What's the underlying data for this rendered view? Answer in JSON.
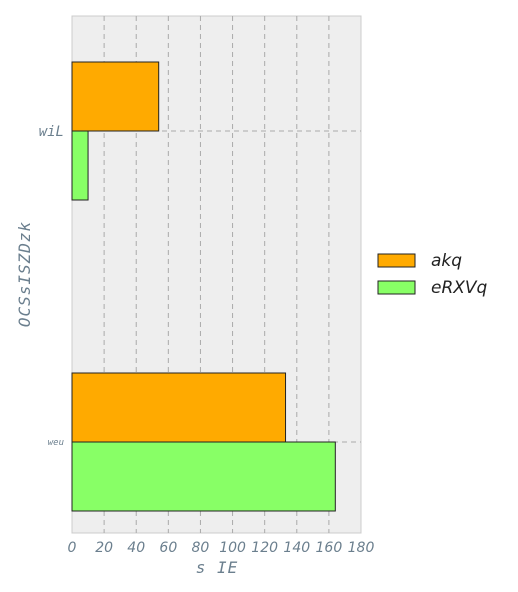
{
  "chart_data": {
    "type": "bar",
    "orientation": "horizontal",
    "categories": [
      "wiL",
      "weu"
    ],
    "series": [
      {
        "name": "akq",
        "values": [
          54,
          133
        ],
        "color": "#ffaa00"
      },
      {
        "name": "eRXVq",
        "values": [
          10,
          164
        ],
        "color": "#88ff66"
      }
    ],
    "xlabel": "s IE",
    "ylabel": "OCSsISZDzk",
    "xlim": [
      0,
      180
    ],
    "xticks": [
      0,
      20,
      40,
      60,
      80,
      100,
      120,
      140,
      160,
      180
    ],
    "grid": true,
    "legend_position": "right",
    "colors": {
      "background": "#eeeeee",
      "grid": "#aaaaaa",
      "text": "#6b7f8e"
    }
  }
}
